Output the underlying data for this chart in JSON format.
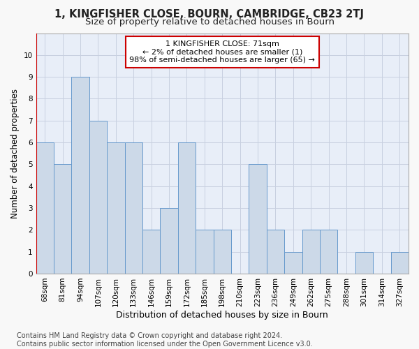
{
  "title": "1, KINGFISHER CLOSE, BOURN, CAMBRIDGE, CB23 2TJ",
  "subtitle": "Size of property relative to detached houses in Bourn",
  "xlabel": "Distribution of detached houses by size in Bourn",
  "ylabel": "Number of detached properties",
  "categories": [
    "68sqm",
    "81sqm",
    "94sqm",
    "107sqm",
    "120sqm",
    "133sqm",
    "146sqm",
    "159sqm",
    "172sqm",
    "185sqm",
    "198sqm",
    "210sqm",
    "223sqm",
    "236sqm",
    "249sqm",
    "262sqm",
    "275sqm",
    "288sqm",
    "301sqm",
    "314sqm",
    "327sqm"
  ],
  "values": [
    6,
    5,
    9,
    7,
    6,
    6,
    2,
    3,
    6,
    2,
    2,
    0,
    5,
    2,
    1,
    2,
    2,
    0,
    1,
    0,
    1
  ],
  "bar_color": "#ccd9e8",
  "bar_edge_color": "#6699cc",
  "highlight_color": "#cc0000",
  "annotation_line1": "1 KINGFISHER CLOSE: 71sqm",
  "annotation_line2": "← 2% of detached houses are smaller (1)",
  "annotation_line3": "98% of semi-detached houses are larger (65) →",
  "annotation_box_color": "#ffffff",
  "annotation_box_edge": "#cc0000",
  "ylim": [
    0,
    11
  ],
  "yticks": [
    0,
    1,
    2,
    3,
    4,
    5,
    6,
    7,
    8,
    9,
    10,
    11
  ],
  "footer": "Contains HM Land Registry data © Crown copyright and database right 2024.\nContains public sector information licensed under the Open Government Licence v3.0.",
  "bg_color": "#f8f8f8",
  "plot_bg_color": "#e8eef8",
  "grid_color": "#c8d0e0",
  "title_fontsize": 10.5,
  "subtitle_fontsize": 9.5,
  "xlabel_fontsize": 9,
  "ylabel_fontsize": 8.5,
  "tick_fontsize": 7.5,
  "annot_fontsize": 8,
  "footer_fontsize": 7
}
